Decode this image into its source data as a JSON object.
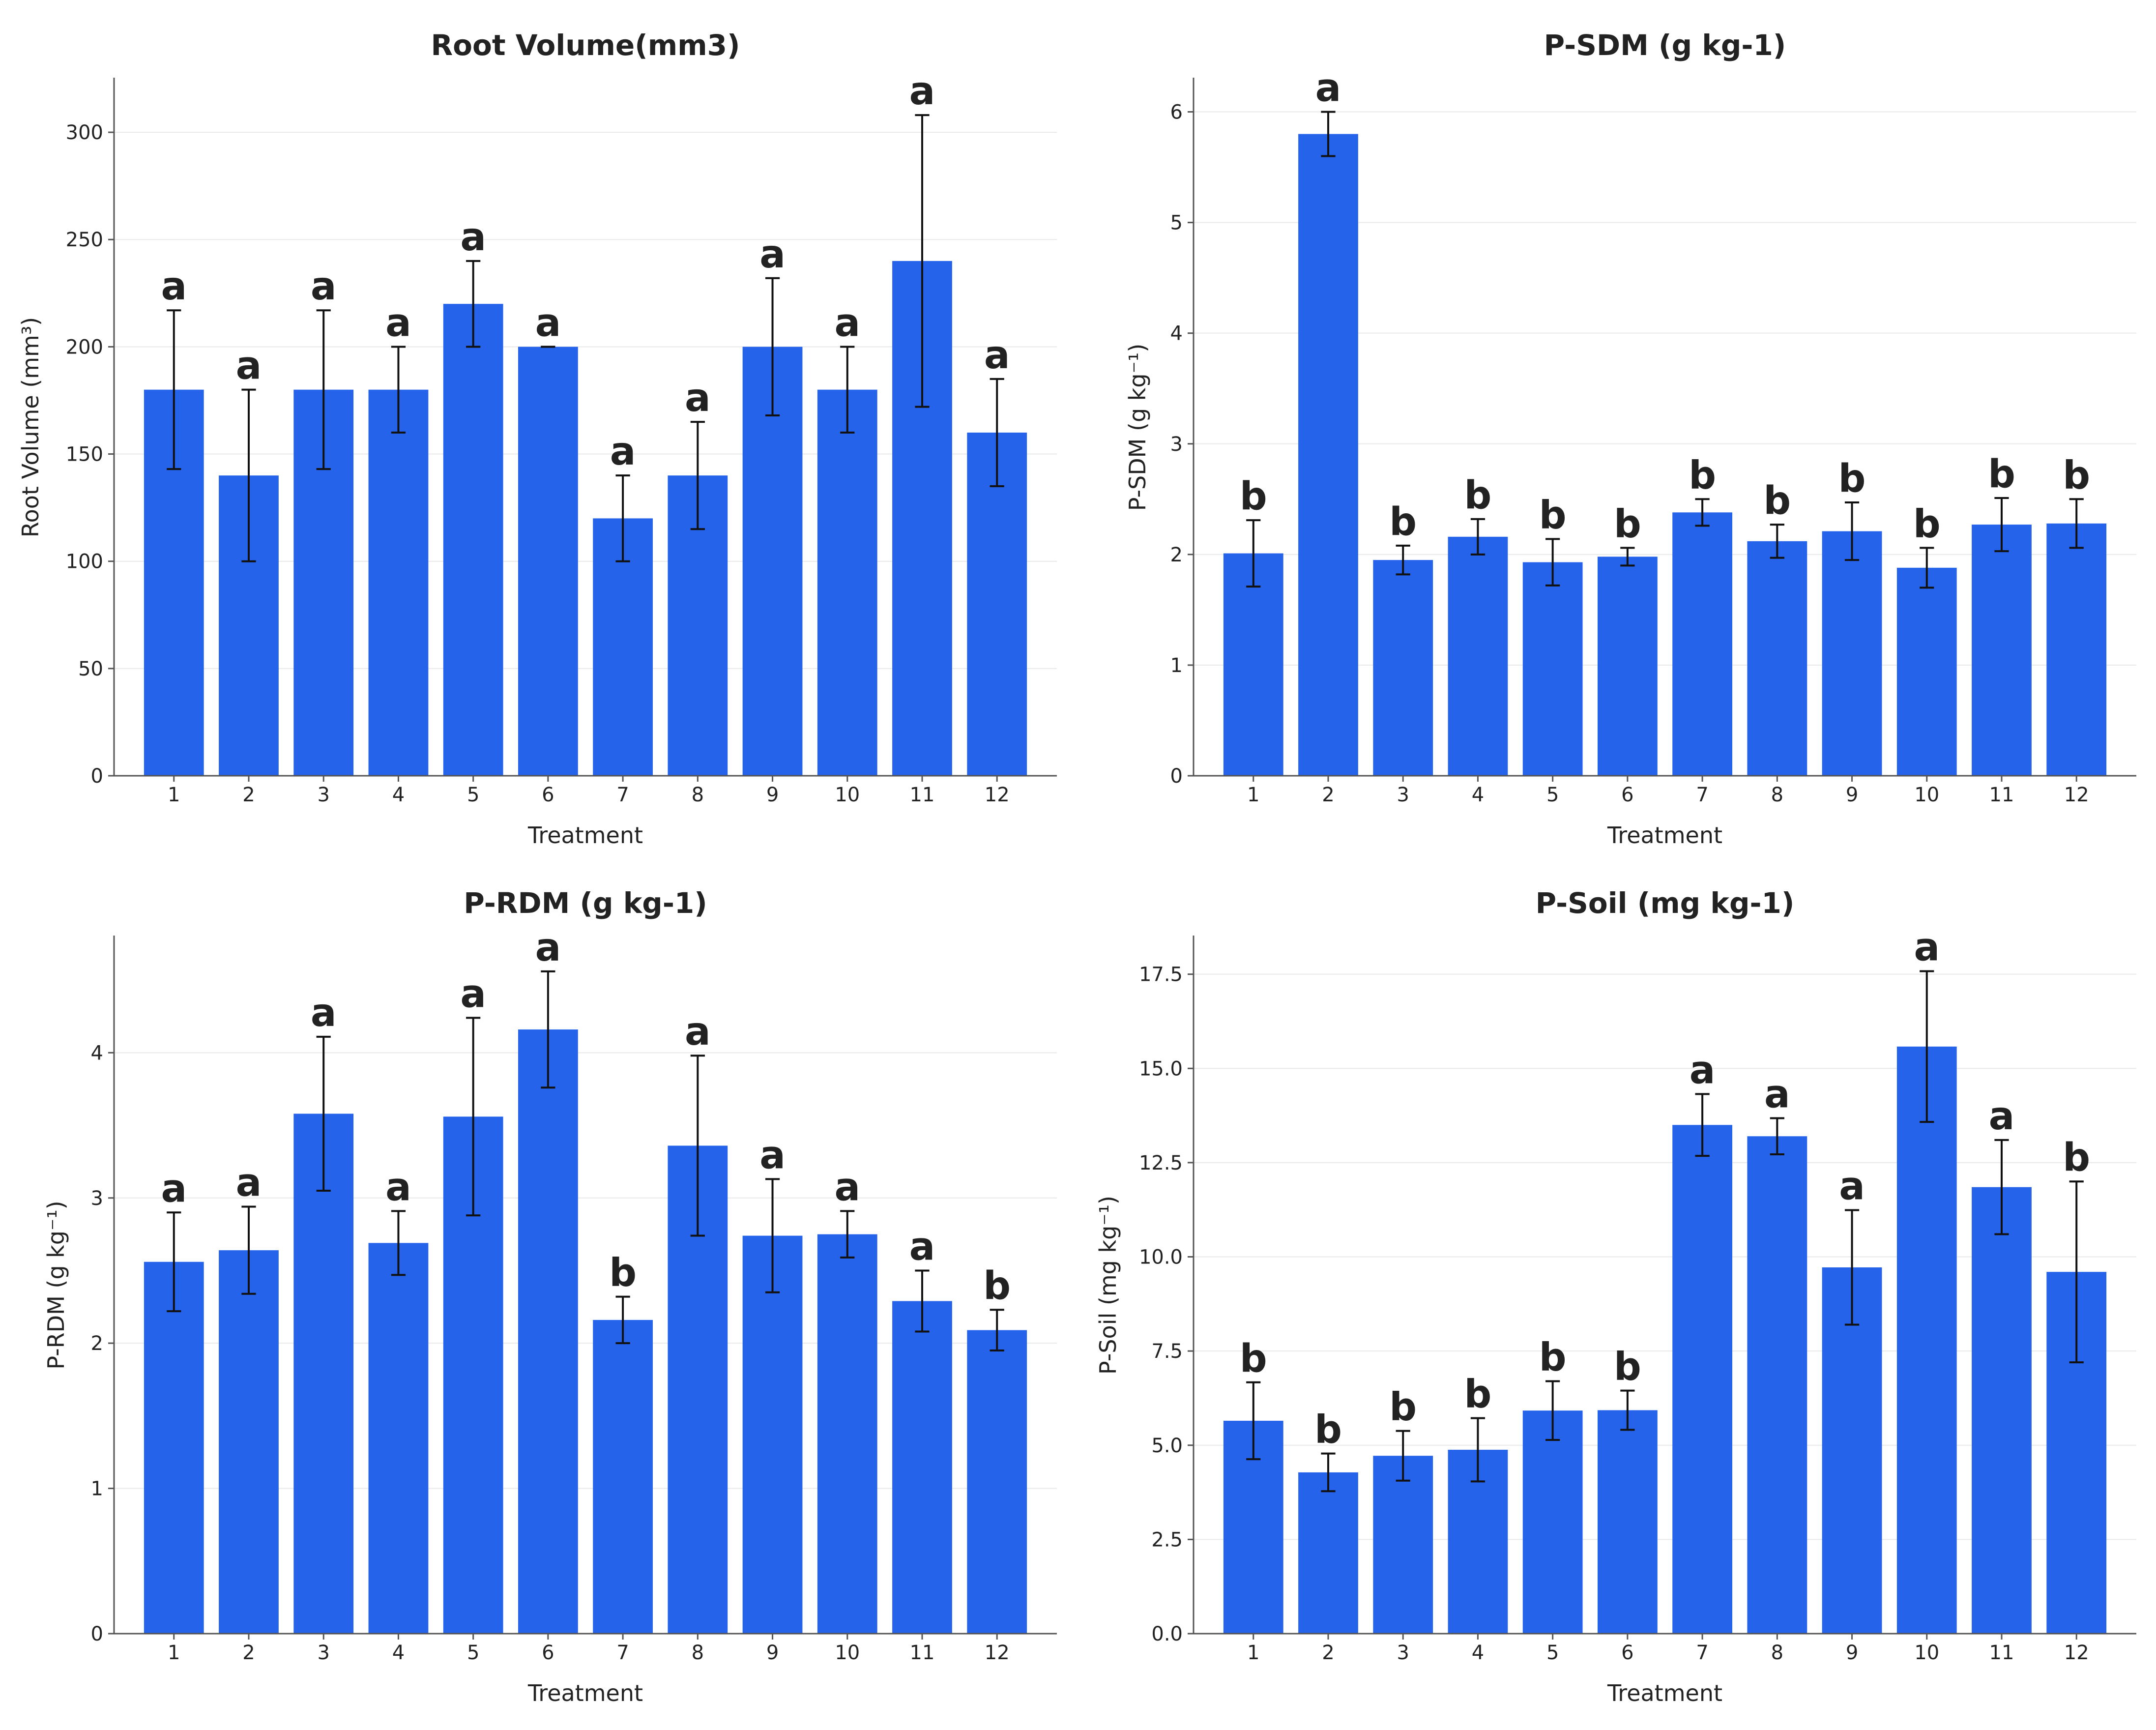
{
  "colors": {
    "bar": "#2563eb",
    "error_bar": "#111111",
    "grid": "#e9e9e9",
    "axis": "#555555"
  },
  "chart_data": [
    {
      "type": "bar",
      "title": "Root Volume(mm3)",
      "xlabel": "Treatment",
      "ylabel": "Root Volume (mm³)",
      "ylim": [
        0,
        325
      ],
      "yticks": [
        0,
        50,
        100,
        150,
        200,
        250,
        300
      ],
      "ytick_labels": [
        "0",
        "50",
        "100",
        "150",
        "200",
        "250",
        "300"
      ],
      "grid": "horizontal",
      "categories": [
        "1",
        "2",
        "3",
        "4",
        "5",
        "6",
        "7",
        "8",
        "9",
        "10",
        "11",
        "12"
      ],
      "values": [
        180,
        140,
        180,
        180,
        220,
        200,
        120,
        140,
        200,
        180,
        240,
        160
      ],
      "errors": [
        37,
        40,
        37,
        20,
        20,
        0,
        20,
        25,
        32,
        20,
        68,
        25
      ],
      "significance": [
        "a",
        "a",
        "a",
        "a",
        "a",
        "a",
        "a",
        "a",
        "a",
        "a",
        "a",
        "a"
      ]
    },
    {
      "type": "bar",
      "title": "P-SDM (g kg-1)",
      "xlabel": "Treatment",
      "ylabel": "P-SDM (g kg⁻¹)",
      "ylim": [
        0,
        6.3
      ],
      "yticks": [
        0,
        1,
        2,
        3,
        4,
        5,
        6
      ],
      "ytick_labels": [
        "0",
        "1",
        "2",
        "3",
        "4",
        "5",
        "6"
      ],
      "grid": "horizontal",
      "categories": [
        "1",
        "2",
        "3",
        "4",
        "5",
        "6",
        "7",
        "8",
        "9",
        "10",
        "11",
        "12"
      ],
      "values": [
        2.01,
        5.8,
        1.95,
        2.16,
        1.93,
        1.98,
        2.38,
        2.12,
        2.21,
        1.88,
        2.27,
        2.28
      ],
      "errors": [
        0.3,
        0.2,
        0.13,
        0.16,
        0.21,
        0.08,
        0.12,
        0.15,
        0.26,
        0.18,
        0.24,
        0.22
      ],
      "significance": [
        "b",
        "a",
        "b",
        "b",
        "b",
        "b",
        "b",
        "b",
        "b",
        "b",
        "b",
        "b"
      ]
    },
    {
      "type": "bar",
      "title": "P-RDM (g kg-1)",
      "xlabel": "Treatment",
      "ylabel": "P-RDM (g kg⁻¹)",
      "ylim": [
        0,
        4.8
      ],
      "yticks": [
        0,
        1,
        2,
        3,
        4
      ],
      "ytick_labels": [
        "0",
        "1",
        "2",
        "3",
        "4"
      ],
      "grid": "horizontal",
      "categories": [
        "1",
        "2",
        "3",
        "4",
        "5",
        "6",
        "7",
        "8",
        "9",
        "10",
        "11",
        "12"
      ],
      "values": [
        2.56,
        2.64,
        3.58,
        2.69,
        3.56,
        4.16,
        2.16,
        3.36,
        2.74,
        2.75,
        2.29,
        2.09
      ],
      "errors": [
        0.34,
        0.3,
        0.53,
        0.22,
        0.68,
        0.4,
        0.16,
        0.62,
        0.39,
        0.16,
        0.21,
        0.14
      ],
      "significance": [
        "a",
        "a",
        "a",
        "a",
        "a",
        "a",
        "b",
        "a",
        "a",
        "a",
        "a",
        "b"
      ]
    },
    {
      "type": "bar",
      "title": "P-Soil (mg kg-1)",
      "xlabel": "Treatment",
      "ylabel": "P-Soil (mg kg⁻¹)",
      "ylim": [
        0,
        18.5
      ],
      "yticks": [
        0,
        2.5,
        5,
        7.5,
        10,
        12.5,
        15,
        17.5
      ],
      "ytick_labels": [
        "0.0",
        "2.5",
        "5.0",
        "7.5",
        "10.0",
        "12.5",
        "15.0",
        "17.5"
      ],
      "grid": "horizontal",
      "categories": [
        "1",
        "2",
        "3",
        "4",
        "5",
        "6",
        "7",
        "8",
        "9",
        "10",
        "11",
        "12"
      ],
      "values": [
        5.65,
        4.28,
        4.72,
        4.88,
        5.92,
        5.93,
        13.5,
        13.2,
        9.72,
        15.58,
        11.85,
        9.6
      ],
      "errors": [
        1.02,
        0.5,
        0.66,
        0.84,
        0.78,
        0.52,
        0.82,
        0.48,
        1.52,
        2.0,
        1.25,
        2.4
      ],
      "significance": [
        "b",
        "b",
        "b",
        "b",
        "b",
        "b",
        "a",
        "a",
        "a",
        "a",
        "a",
        "b"
      ]
    }
  ]
}
